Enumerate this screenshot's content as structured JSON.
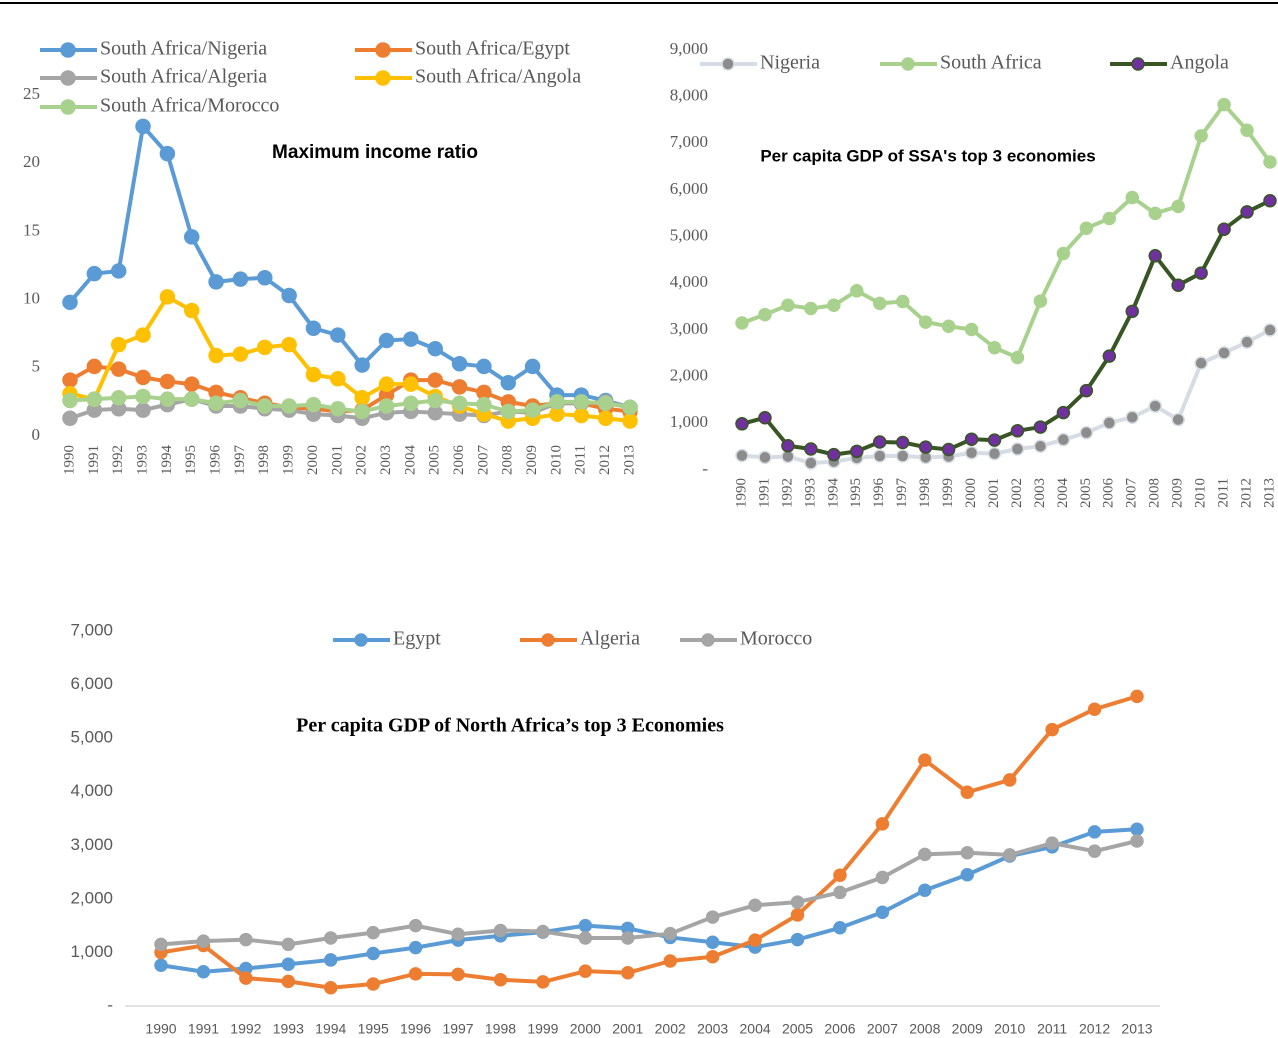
{
  "chart_data": [
    {
      "type": "line",
      "title": "Maximum income ratio",
      "categories": [
        "1990",
        "1991",
        "1992",
        "1993",
        "1994",
        "1995",
        "1996",
        "1997",
        "1998",
        "1999",
        "2000",
        "2001",
        "2002",
        "2003",
        "2004",
        "2005",
        "2006",
        "2007",
        "2008",
        "2009",
        "2010",
        "2011",
        "2012",
        "2013"
      ],
      "ylim": [
        0,
        25
      ],
      "yticks": [
        0,
        5,
        10,
        15,
        20,
        25
      ],
      "grid": false,
      "legend": "top",
      "series": [
        {
          "name": "South Africa/Nigeria",
          "color": "#5b9bd5",
          "values": [
            9.8,
            11.9,
            12.1,
            22.7,
            20.7,
            14.6,
            11.3,
            11.5,
            11.6,
            10.3,
            7.9,
            7.4,
            5.2,
            7.0,
            7.1,
            6.4,
            5.3,
            5.1,
            3.9,
            5.1,
            3.0,
            3.0,
            2.6,
            2.1
          ]
        },
        {
          "name": "South Africa/Egypt",
          "color": "#ed7d31",
          "values": [
            4.1,
            5.1,
            4.9,
            4.3,
            4.0,
            3.8,
            3.2,
            2.8,
            2.4,
            2.1,
            2.0,
            1.8,
            1.9,
            3.0,
            4.1,
            4.1,
            3.6,
            3.2,
            2.5,
            2.2,
            2.4,
            2.4,
            2.0,
            1.8
          ]
        },
        {
          "name": "South Africa/Algeria",
          "color": "#a5a5a5",
          "values": [
            1.3,
            1.9,
            2.0,
            1.9,
            2.3,
            2.7,
            2.2,
            2.2,
            2.0,
            1.9,
            1.6,
            1.5,
            1.3,
            1.7,
            1.8,
            1.7,
            1.6,
            1.5,
            1.8,
            1.7,
            2.4,
            2.4,
            2.5,
            2.1
          ]
        },
        {
          "name": "South Africa/Angola",
          "color": "#ffc000",
          "values": [
            3.1,
            2.7,
            6.7,
            7.4,
            10.2,
            9.2,
            5.9,
            6.0,
            6.5,
            6.7,
            4.5,
            4.2,
            2.8,
            3.8,
            3.8,
            2.9,
            2.2,
            1.6,
            1.1,
            1.3,
            1.6,
            1.5,
            1.3,
            1.1
          ]
        },
        {
          "name": "South Africa/Morocco",
          "color": "#a9d18e",
          "values": [
            2.6,
            2.7,
            2.8,
            2.9,
            2.7,
            2.7,
            2.4,
            2.6,
            2.2,
            2.2,
            2.3,
            2.0,
            1.8,
            2.2,
            2.4,
            2.6,
            2.4,
            2.3,
            1.8,
            1.9,
            2.5,
            2.5,
            2.4,
            2.1
          ]
        }
      ]
    },
    {
      "type": "line",
      "title": "Per capita GDP of SSA's top 3 economies",
      "categories": [
        "1990",
        "1991",
        "1992",
        "1993",
        "1994",
        "1995",
        "1996",
        "1997",
        "1998",
        "1999",
        "2000",
        "2001",
        "2002",
        "2003",
        "2004",
        "2005",
        "2006",
        "2007",
        "2008",
        "2009",
        "2010",
        "2011",
        "2012",
        "2013"
      ],
      "ylim": [
        0,
        9000
      ],
      "yticks": [
        {
          "value": 0,
          "label": "-"
        },
        {
          "value": 1000,
          "label": "1,000"
        },
        {
          "value": 2000,
          "label": "2,000"
        },
        {
          "value": 3000,
          "label": "3,000"
        },
        {
          "value": 4000,
          "label": "4,000"
        },
        {
          "value": 5000,
          "label": "5,000"
        },
        {
          "value": 6000,
          "label": "6,000"
        },
        {
          "value": 7000,
          "label": "7,000"
        },
        {
          "value": 8000,
          "label": "8,000"
        },
        {
          "value": 9000,
          "label": "9,000"
        }
      ],
      "grid": false,
      "legend": "top",
      "series": [
        {
          "name": "Nigeria",
          "color": "#d6dce4",
          "marker_color": "#8c8c8c",
          "values": [
            310,
            270,
            290,
            150,
            180,
            260,
            300,
            300,
            270,
            290,
            370,
            350,
            450,
            510,
            650,
            800,
            1010,
            1130,
            1370,
            1080,
            2290,
            2510,
            2740,
            3000
          ]
        },
        {
          "name": "South Africa",
          "color": "#a9d18e",
          "values": [
            3150,
            3330,
            3530,
            3460,
            3530,
            3840,
            3570,
            3610,
            3170,
            3080,
            3010,
            2620,
            2410,
            3620,
            4640,
            5180,
            5390,
            5840,
            5500,
            5650,
            7160,
            7830,
            7280,
            6600
          ]
        },
        {
          "name": "Angola",
          "color": "#375623",
          "marker_color": "#7030a0",
          "values": [
            990,
            1120,
            520,
            450,
            330,
            400,
            600,
            590,
            490,
            440,
            660,
            640,
            840,
            920,
            1230,
            1700,
            2440,
            3400,
            4590,
            3960,
            4220,
            5160,
            5530,
            5770
          ]
        }
      ]
    },
    {
      "type": "line",
      "title": "Per capita GDP of North Africa’s top 3 Economies",
      "categories": [
        "1990",
        "1991",
        "1992",
        "1993",
        "1994",
        "1995",
        "1996",
        "1997",
        "1998",
        "1999",
        "2000",
        "2001",
        "2002",
        "2003",
        "2004",
        "2005",
        "2006",
        "2007",
        "2008",
        "2009",
        "2010",
        "2011",
        "2012",
        "2013"
      ],
      "ylim": [
        0,
        7000
      ],
      "yticks": [
        {
          "value": 0,
          "label": "-"
        },
        {
          "value": 1000,
          "label": "1,000"
        },
        {
          "value": 2000,
          "label": "2,000"
        },
        {
          "value": 3000,
          "label": "3,000"
        },
        {
          "value": 4000,
          "label": "4,000"
        },
        {
          "value": 5000,
          "label": "5,000"
        },
        {
          "value": 6000,
          "label": "6,000"
        },
        {
          "value": 7000,
          "label": "7,000"
        }
      ],
      "grid": false,
      "legend": "top",
      "series": [
        {
          "name": "Egypt",
          "color": "#5b9bd5",
          "values": [
            760,
            640,
            700,
            780,
            860,
            980,
            1090,
            1230,
            1310,
            1380,
            1500,
            1450,
            1280,
            1190,
            1100,
            1240,
            1460,
            1750,
            2160,
            2450,
            2800,
            2970,
            3250,
            3300
          ]
        },
        {
          "name": "Algeria",
          "color": "#ed7d31",
          "values": [
            1000,
            1130,
            520,
            460,
            340,
            410,
            600,
            590,
            490,
            450,
            650,
            620,
            840,
            920,
            1230,
            1700,
            2440,
            3400,
            4590,
            3990,
            4220,
            5160,
            5540,
            5780
          ]
        },
        {
          "name": "Morocco",
          "color": "#a5a5a5",
          "values": [
            1150,
            1210,
            1240,
            1150,
            1270,
            1370,
            1500,
            1340,
            1410,
            1390,
            1270,
            1270,
            1350,
            1660,
            1880,
            1940,
            2120,
            2400,
            2830,
            2860,
            2820,
            3040,
            2890,
            3080
          ]
        }
      ]
    }
  ]
}
